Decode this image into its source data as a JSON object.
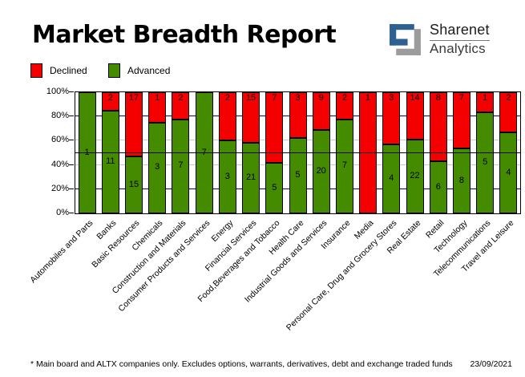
{
  "header": {
    "title": "Market Breadth Report",
    "logo": {
      "line1": "Sharenet",
      "line2": "Analytics"
    }
  },
  "legend": [
    {
      "label": "Declined",
      "color": "#F40000"
    },
    {
      "label": "Advanced",
      "color": "#458B00"
    }
  ],
  "colors": {
    "advanced": "#458B00",
    "declined": "#F40000",
    "grid_navy": "#000080",
    "grid_gray": "#C8C8C8",
    "midline": "#000000",
    "logo_blue": "#2E618F",
    "logo_gray": "#9C9C9C"
  },
  "chart_data": {
    "type": "bar",
    "stacked": true,
    "normalized": "percent",
    "title": "Market Breadth Report",
    "xlabel": "",
    "ylabel": "",
    "ylim": [
      0,
      100
    ],
    "y_ticks": [
      "0%",
      "20%",
      "40%",
      "60%",
      "80%",
      "100%"
    ],
    "gridlines": [
      {
        "pos": 20,
        "color": "#000080"
      },
      {
        "pos": 40,
        "color": "#C8C8C8"
      },
      {
        "pos": 60,
        "color": "#C8C8C8"
      },
      {
        "pos": 80,
        "color": "#000080"
      }
    ],
    "midline": 50,
    "legend_position": "top-left",
    "categories": [
      "Automobiles and Parts",
      "Banks",
      "Basic Resources",
      "Chemicals",
      "Construction and Materials",
      "Consumer Products and Services",
      "Energy",
      "Financial Services",
      "Food,Beverages and Tobacco",
      "Health Care",
      "Industrial Goods and Services",
      "Insurance",
      "Media",
      "Personal Care, Drug and Grocery Stores",
      "Real Estate",
      "Retail",
      "Technology",
      "Telecommunications",
      "Travel and Leisure"
    ],
    "series": [
      {
        "name": "Advanced",
        "color": "#458B00",
        "values": [
          1,
          11,
          15,
          3,
          7,
          7,
          3,
          21,
          5,
          5,
          20,
          7,
          0,
          4,
          22,
          6,
          8,
          5,
          4
        ]
      },
      {
        "name": "Declined",
        "color": "#F40000",
        "values": [
          0,
          2,
          17,
          1,
          2,
          0,
          2,
          15,
          7,
          3,
          9,
          2,
          1,
          3,
          14,
          8,
          7,
          1,
          2
        ]
      }
    ]
  },
  "footer": {
    "note": "* Main board and ALTX companies only. Excludes options, warrants, derivatives, debt and exchange traded funds",
    "date": "23/09/2021"
  }
}
